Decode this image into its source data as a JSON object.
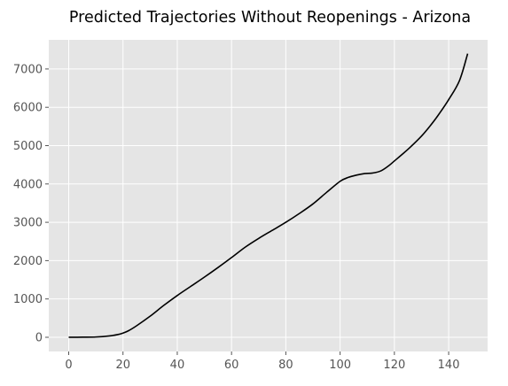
{
  "chart_data": {
    "type": "line",
    "title": "Predicted Trajectories Without Reopenings - Arizona",
    "xlabel": "",
    "ylabel": "",
    "xlim": [
      -7.35,
      154.35
    ],
    "ylim": [
      -370,
      7760
    ],
    "x_ticks": [
      0,
      20,
      40,
      60,
      80,
      100,
      120,
      140
    ],
    "y_ticks": [
      0,
      1000,
      2000,
      3000,
      4000,
      5000,
      6000,
      7000
    ],
    "grid": true,
    "style": "ggplot",
    "background_color": "#e5e5e5",
    "grid_color": "#ffffff",
    "line_color": "#000000",
    "series": [
      {
        "x": [
          0,
          5,
          10,
          15,
          18,
          20,
          22,
          25,
          30,
          35,
          40,
          45,
          50,
          55,
          60,
          65,
          70,
          75,
          80,
          85,
          90,
          95,
          100,
          103,
          106,
          109,
          112,
          115,
          118,
          120,
          123,
          126,
          130,
          133,
          136,
          140,
          144,
          147
        ],
        "y": [
          0,
          3,
          8,
          35,
          70,
          110,
          170,
          300,
          550,
          830,
          1090,
          1330,
          1570,
          1820,
          2080,
          2350,
          2580,
          2790,
          3000,
          3230,
          3480,
          3780,
          4070,
          4170,
          4230,
          4270,
          4285,
          4340,
          4480,
          4600,
          4780,
          4970,
          5250,
          5500,
          5780,
          6200,
          6700,
          7400
        ]
      }
    ]
  }
}
